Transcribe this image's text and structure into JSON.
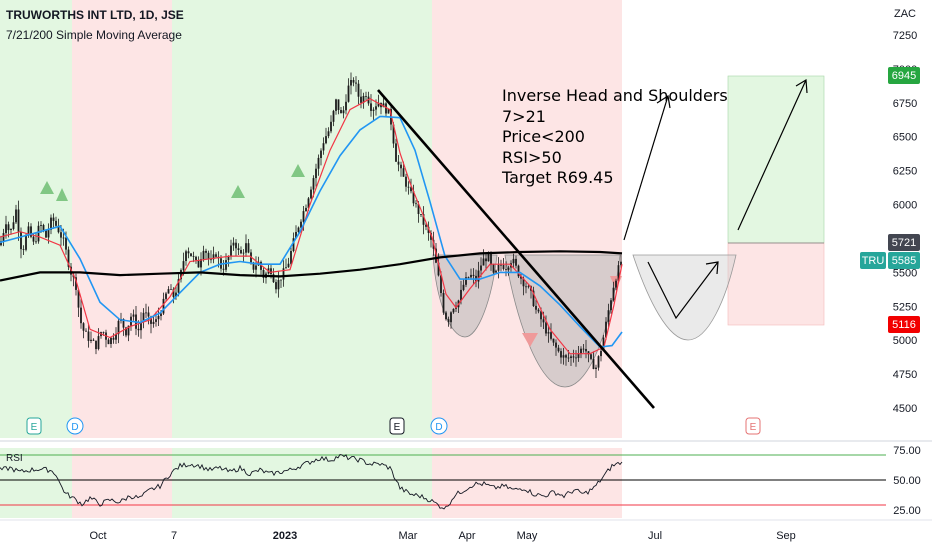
{
  "header": {
    "symbol_line": "TRUWORTHS INT LTD, 1D, JSE",
    "indicator_line": "7/21/200 Simple Moving Average"
  },
  "annotation": {
    "lines": [
      "Inverse Head and Shoulders",
      "7>21",
      "Price<200",
      "RSI>50",
      "Target R69.45"
    ]
  },
  "colors": {
    "green_zone": "#e3f7e1",
    "red_zone": "#fde5e5",
    "candle": "#1b1b1b",
    "sma7": "#f23645",
    "sma21": "#2196f3",
    "sma200": "#000000",
    "price_tag": "#26a69a",
    "target_tag": "#26a640",
    "stop_tag": "#f20000",
    "rsi_upper": "#4caf50",
    "rsi_lower": "#f23645"
  },
  "chart_data": {
    "type": "candlestick",
    "currency": "ZAC",
    "y_ticks": [
      7250,
      7000,
      6750,
      6500,
      6250,
      6000,
      5750,
      5500,
      5250,
      5000,
      4750,
      4500
    ],
    "ylim": [
      4300,
      7450
    ],
    "x_ticks": [
      "Oct",
      "7",
      "2023",
      "Mar",
      "Apr",
      "May",
      "Jul",
      "Sep"
    ],
    "price_tags": {
      "ticker": "TRU",
      "last": 5585,
      "last_label": "5585",
      "target": 6945,
      "target_label": "6945",
      "entry": 5721,
      "entry_label": "5721",
      "stop": 5116,
      "stop_label": "5116"
    },
    "event_markers": [
      "E",
      "D",
      "E",
      "D",
      "E"
    ],
    "price_path": [
      [
        0,
        5700
      ],
      [
        6,
        5880
      ],
      [
        10,
        5780
      ],
      [
        16,
        5960
      ],
      [
        22,
        5640
      ],
      [
        28,
        5820
      ],
      [
        34,
        5700
      ],
      [
        40,
        5860
      ],
      [
        46,
        5760
      ],
      [
        52,
        5900
      ],
      [
        58,
        5820
      ],
      [
        64,
        5720
      ],
      [
        70,
        5520
      ],
      [
        76,
        5400
      ],
      [
        80,
        5150
      ],
      [
        84,
        5060
      ],
      [
        90,
        5000
      ],
      [
        96,
        4960
      ],
      [
        102,
        5080
      ],
      [
        108,
        4990
      ],
      [
        114,
        5030
      ],
      [
        120,
        5160
      ],
      [
        126,
        5060
      ],
      [
        132,
        5200
      ],
      [
        138,
        5060
      ],
      [
        144,
        5220
      ],
      [
        150,
        5120
      ],
      [
        156,
        5140
      ],
      [
        162,
        5240
      ],
      [
        168,
        5380
      ],
      [
        174,
        5320
      ],
      [
        180,
        5460
      ],
      [
        186,
        5680
      ],
      [
        192,
        5620
      ],
      [
        198,
        5540
      ],
      [
        204,
        5700
      ],
      [
        210,
        5560
      ],
      [
        216,
        5640
      ],
      [
        222,
        5520
      ],
      [
        228,
        5600
      ],
      [
        234,
        5740
      ],
      [
        240,
        5620
      ],
      [
        246,
        5700
      ],
      [
        252,
        5520
      ],
      [
        258,
        5580
      ],
      [
        264,
        5460
      ],
      [
        270,
        5540
      ],
      [
        276,
        5400
      ],
      [
        282,
        5480
      ],
      [
        288,
        5560
      ],
      [
        294,
        5740
      ],
      [
        300,
        5880
      ],
      [
        306,
        6000
      ],
      [
        312,
        6160
      ],
      [
        318,
        6320
      ],
      [
        324,
        6480
      ],
      [
        330,
        6560
      ],
      [
        336,
        6760
      ],
      [
        342,
        6640
      ],
      [
        348,
        6860
      ],
      [
        354,
        6920
      ],
      [
        360,
        6760
      ],
      [
        366,
        6820
      ],
      [
        372,
        6700
      ],
      [
        378,
        6760
      ],
      [
        384,
        6720
      ],
      [
        390,
        6660
      ],
      [
        396,
        6340
      ],
      [
        402,
        6220
      ],
      [
        408,
        6120
      ],
      [
        414,
        6020
      ],
      [
        420,
        5920
      ],
      [
        426,
        5820
      ],
      [
        432,
        5720
      ],
      [
        436,
        5560
      ],
      [
        440,
        5400
      ],
      [
        444,
        5200
      ],
      [
        448,
        5140
      ],
      [
        452,
        5240
      ],
      [
        458,
        5280
      ],
      [
        464,
        5420
      ],
      [
        470,
        5480
      ],
      [
        476,
        5440
      ],
      [
        482,
        5580
      ],
      [
        488,
        5620
      ],
      [
        494,
        5460
      ],
      [
        500,
        5560
      ],
      [
        506,
        5540
      ],
      [
        512,
        5600
      ],
      [
        518,
        5500
      ],
      [
        524,
        5420
      ],
      [
        530,
        5360
      ],
      [
        536,
        5220
      ],
      [
        542,
        5140
      ],
      [
        548,
        5040
      ],
      [
        554,
        4960
      ],
      [
        560,
        4900
      ],
      [
        566,
        4860
      ],
      [
        572,
        4880
      ],
      [
        578,
        4900
      ],
      [
        584,
        4960
      ],
      [
        590,
        4840
      ],
      [
        596,
        4800
      ],
      [
        602,
        4960
      ],
      [
        608,
        5200
      ],
      [
        614,
        5420
      ],
      [
        620,
        5560
      ],
      [
        622,
        5600
      ]
    ],
    "series": [
      {
        "name": "SMA 7",
        "points": [
          [
            0,
            5760
          ],
          [
            20,
            5800
          ],
          [
            40,
            5760
          ],
          [
            60,
            5700
          ],
          [
            76,
            5440
          ],
          [
            90,
            5080
          ],
          [
            110,
            5020
          ],
          [
            130,
            5100
          ],
          [
            150,
            5150
          ],
          [
            170,
            5320
          ],
          [
            190,
            5580
          ],
          [
            210,
            5600
          ],
          [
            230,
            5620
          ],
          [
            250,
            5620
          ],
          [
            270,
            5500
          ],
          [
            290,
            5520
          ],
          [
            310,
            6000
          ],
          [
            330,
            6400
          ],
          [
            350,
            6700
          ],
          [
            370,
            6780
          ],
          [
            390,
            6700
          ],
          [
            400,
            6380
          ],
          [
            410,
            6160
          ],
          [
            420,
            5980
          ],
          [
            432,
            5760
          ],
          [
            446,
            5340
          ],
          [
            456,
            5240
          ],
          [
            470,
            5380
          ],
          [
            490,
            5560
          ],
          [
            510,
            5560
          ],
          [
            530,
            5400
          ],
          [
            550,
            5080
          ],
          [
            570,
            4900
          ],
          [
            590,
            4900
          ],
          [
            604,
            4950
          ],
          [
            614,
            5260
          ],
          [
            622,
            5560
          ]
        ]
      },
      {
        "name": "SMA 21",
        "points": [
          [
            0,
            5720
          ],
          [
            20,
            5760
          ],
          [
            40,
            5800
          ],
          [
            60,
            5840
          ],
          [
            80,
            5600
          ],
          [
            100,
            5280
          ],
          [
            120,
            5150
          ],
          [
            140,
            5130
          ],
          [
            160,
            5200
          ],
          [
            180,
            5350
          ],
          [
            200,
            5500
          ],
          [
            220,
            5560
          ],
          [
            240,
            5580
          ],
          [
            260,
            5560
          ],
          [
            280,
            5560
          ],
          [
            300,
            5800
          ],
          [
            320,
            6100
          ],
          [
            340,
            6360
          ],
          [
            360,
            6550
          ],
          [
            380,
            6650
          ],
          [
            400,
            6640
          ],
          [
            415,
            6400
          ],
          [
            430,
            6020
          ],
          [
            445,
            5620
          ],
          [
            460,
            5450
          ],
          [
            480,
            5450
          ],
          [
            500,
            5500
          ],
          [
            520,
            5500
          ],
          [
            540,
            5400
          ],
          [
            560,
            5260
          ],
          [
            580,
            5100
          ],
          [
            600,
            4950
          ],
          [
            612,
            4960
          ],
          [
            622,
            5060
          ]
        ]
      },
      {
        "name": "SMA 200",
        "points": [
          [
            0,
            5440
          ],
          [
            40,
            5500
          ],
          [
            80,
            5500
          ],
          [
            120,
            5480
          ],
          [
            160,
            5490
          ],
          [
            200,
            5500
          ],
          [
            240,
            5480
          ],
          [
            280,
            5470
          ],
          [
            320,
            5490
          ],
          [
            360,
            5520
          ],
          [
            400,
            5560
          ],
          [
            440,
            5610
          ],
          [
            480,
            5640
          ],
          [
            520,
            5650
          ],
          [
            560,
            5655
          ],
          [
            600,
            5650
          ],
          [
            622,
            5640
          ]
        ]
      }
    ],
    "rsi": {
      "levels": [
        75,
        50,
        25
      ],
      "ylim": [
        20,
        82
      ],
      "values": [
        [
          0,
          60
        ],
        [
          10,
          62
        ],
        [
          20,
          58
        ],
        [
          30,
          60
        ],
        [
          40,
          61
        ],
        [
          50,
          60
        ],
        [
          56,
          56
        ],
        [
          60,
          46
        ],
        [
          66,
          36
        ],
        [
          70,
          34
        ],
        [
          76,
          30
        ],
        [
          82,
          26
        ],
        [
          90,
          32
        ],
        [
          100,
          26
        ],
        [
          110,
          30
        ],
        [
          120,
          28
        ],
        [
          130,
          34
        ],
        [
          140,
          32
        ],
        [
          150,
          40
        ],
        [
          160,
          44
        ],
        [
          170,
          56
        ],
        [
          180,
          64
        ],
        [
          190,
          66
        ],
        [
          200,
          64
        ],
        [
          210,
          60
        ],
        [
          220,
          62
        ],
        [
          230,
          58
        ],
        [
          240,
          62
        ],
        [
          250,
          56
        ],
        [
          260,
          60
        ],
        [
          270,
          56
        ],
        [
          280,
          58
        ],
        [
          290,
          60
        ],
        [
          300,
          64
        ],
        [
          310,
          68
        ],
        [
          320,
          72
        ],
        [
          330,
          70
        ],
        [
          340,
          74
        ],
        [
          350,
          72
        ],
        [
          360,
          70
        ],
        [
          370,
          66
        ],
        [
          380,
          66
        ],
        [
          390,
          62
        ],
        [
          400,
          42
        ],
        [
          410,
          36
        ],
        [
          420,
          34
        ],
        [
          430,
          30
        ],
        [
          440,
          24
        ],
        [
          446,
          22
        ],
        [
          454,
          34
        ],
        [
          464,
          40
        ],
        [
          474,
          46
        ],
        [
          484,
          46
        ],
        [
          494,
          42
        ],
        [
          504,
          44
        ],
        [
          514,
          40
        ],
        [
          524,
          42
        ],
        [
          534,
          36
        ],
        [
          544,
          34
        ],
        [
          554,
          38
        ],
        [
          564,
          34
        ],
        [
          574,
          40
        ],
        [
          584,
          36
        ],
        [
          594,
          42
        ],
        [
          604,
          54
        ],
        [
          612,
          64
        ],
        [
          622,
          68
        ]
      ]
    }
  }
}
